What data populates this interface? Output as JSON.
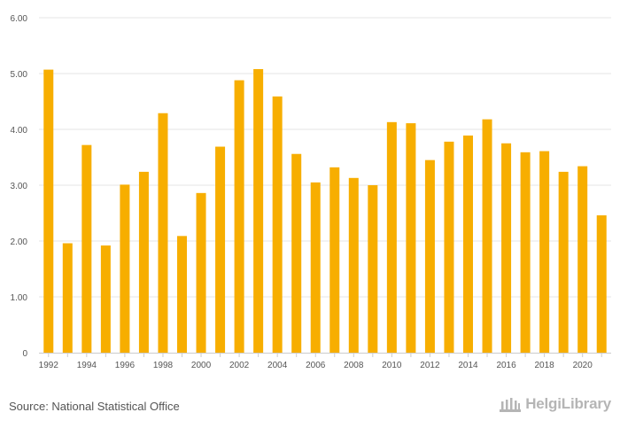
{
  "chart_data": {
    "type": "bar",
    "title": "",
    "xlabel": "",
    "ylabel": "",
    "ylim": [
      0,
      6
    ],
    "yticks": [
      "0",
      "1.00",
      "2.00",
      "3.00",
      "4.00",
      "5.00",
      "6.00"
    ],
    "ytick_values": [
      0,
      1,
      2,
      3,
      4,
      5,
      6
    ],
    "categories": [
      "1992",
      "1993",
      "1994",
      "1995",
      "1996",
      "1997",
      "1998",
      "1999",
      "2000",
      "2001",
      "2002",
      "2003",
      "2004",
      "2005",
      "2006",
      "2007",
      "2008",
      "2009",
      "2010",
      "2011",
      "2012",
      "2013",
      "2014",
      "2015",
      "2016",
      "2017",
      "2018",
      "2019",
      "2020",
      "2021"
    ],
    "xtick_labels": [
      "1992",
      "1994",
      "1996",
      "1998",
      "2000",
      "2002",
      "2004",
      "2006",
      "2008",
      "2010",
      "2012",
      "2014",
      "2016",
      "2018",
      "2020"
    ],
    "values": [
      5.07,
      1.96,
      3.72,
      1.92,
      3.01,
      3.24,
      4.29,
      2.09,
      2.86,
      3.69,
      4.88,
      5.08,
      4.59,
      3.56,
      3.05,
      3.32,
      3.13,
      3.0,
      4.13,
      4.11,
      3.45,
      3.78,
      3.89,
      4.18,
      3.75,
      3.59,
      3.61,
      3.24,
      3.34,
      2.46
    ],
    "bar_color": "#f7ae00",
    "grid": true
  },
  "footer": {
    "source": "Source: National Statistical Office",
    "brand": "HelgiLibrary"
  }
}
